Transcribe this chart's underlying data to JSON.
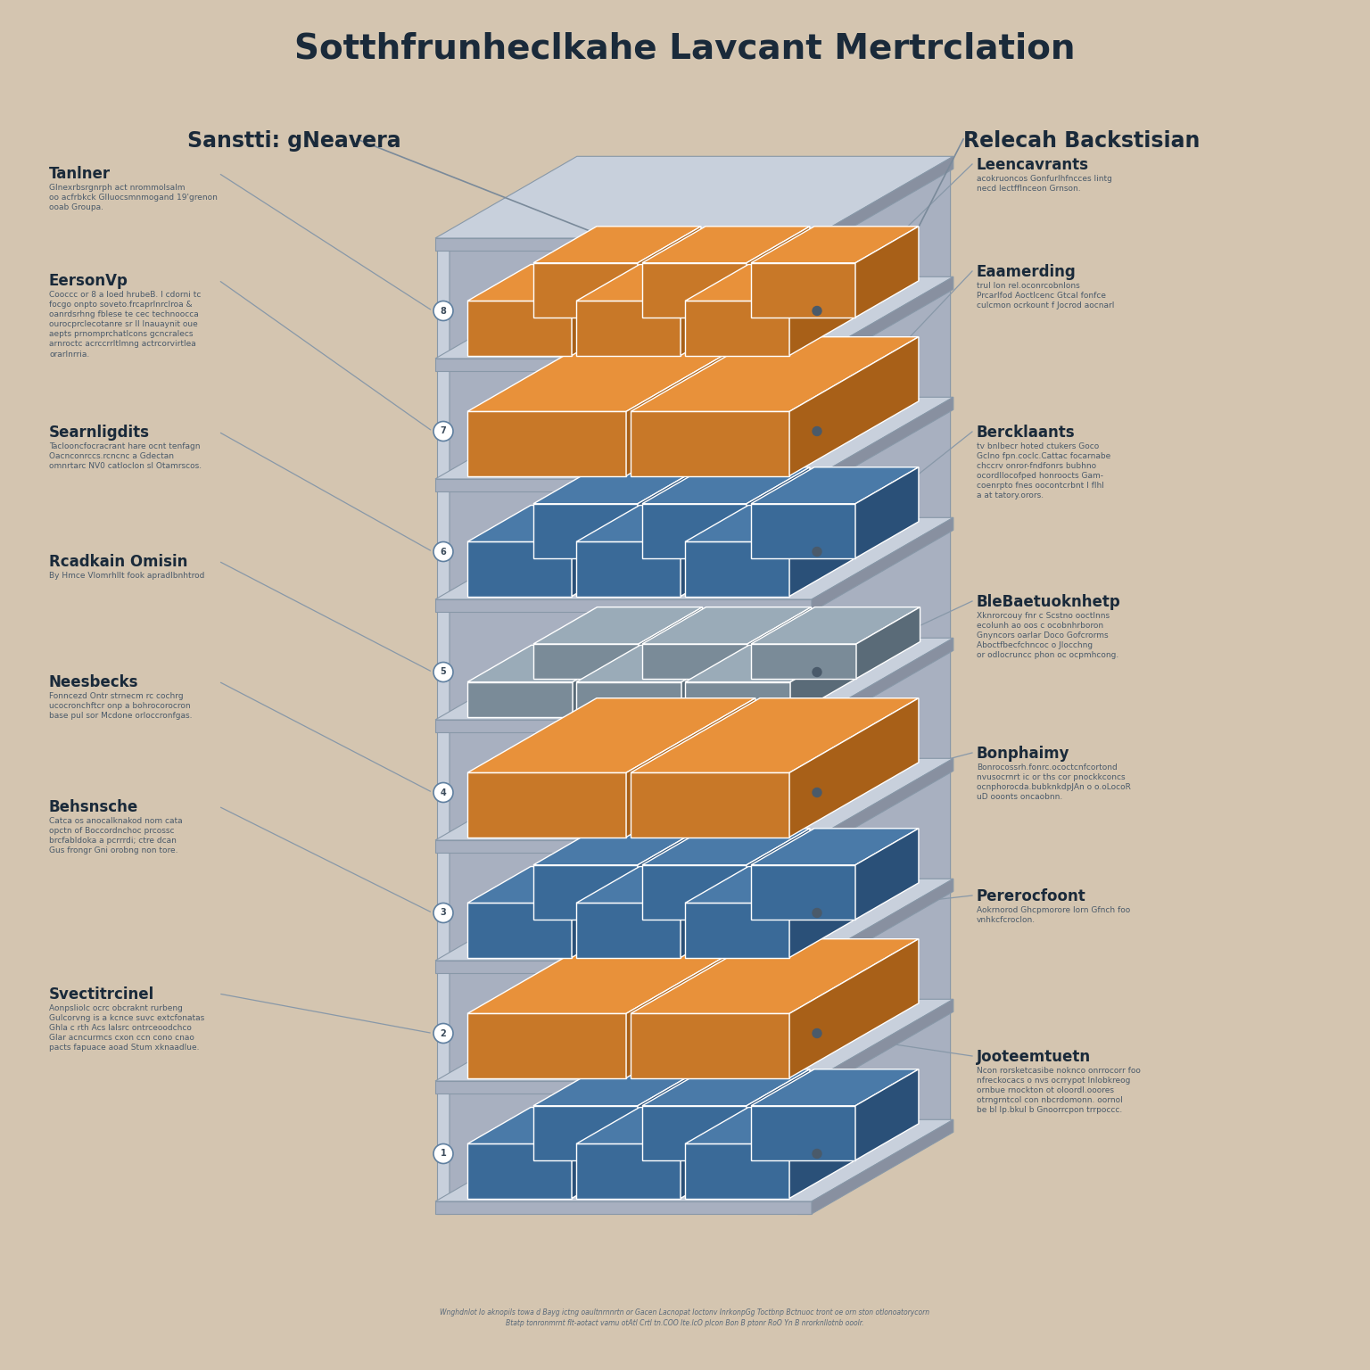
{
  "title": "Sotthfrunheclkahe Lavcant Mertrclation",
  "background_color": "#d4c5b0",
  "left_header": "Sanstti: gNeavera",
  "right_header": "Relecah Backstisian",
  "layer_box_colors": [
    {
      "boxes": "orange",
      "slab": "gray"
    },
    {
      "boxes": "blue",
      "slab": "gray"
    },
    {
      "boxes": "orange",
      "slab": "gray"
    },
    {
      "boxes": "gray",
      "slab": "gray"
    },
    {
      "boxes": "blue",
      "slab": "gray"
    },
    {
      "boxes": "orange",
      "slab": "gray"
    },
    {
      "boxes": "blue",
      "slab": "gray"
    },
    {
      "boxes": "orange",
      "slab": "gray"
    }
  ],
  "orange_top": "#E8913A",
  "orange_front": "#C87828",
  "orange_right": "#A86018",
  "blue_top": "#4A7AA8",
  "blue_front": "#3A6A98",
  "blue_right": "#2A5078",
  "gray_top": "#9AABB8",
  "gray_front": "#7A8B98",
  "gray_right": "#5A6B78",
  "slab_top": "#C8D0DC",
  "slab_top2": "#B0B8C8",
  "slab_front": "#A8B0C0",
  "slab_right": "#8890A0",
  "wall_front": "#C8D0DC",
  "wall_right": "#A8B0C0",
  "left_labels": [
    {
      "title": "Tanlner",
      "desc": "Glnexrbsrgnrph act nrommolsalm\noo acfrbkck Glluocsmnmogand 19'grenon\nooab Groupa."
    },
    {
      "title": "EersonVp",
      "desc": "Cooccc or 8 a loed hrubeB. I cdorni tc\nfocgo onpto soveto.frcaprlnrclroa &\noanrdsrhng fblese te cec technoocca\nourocprclecotanre sr ll Inauaynit oue\naepts prnomprchatlcons gcncralecs\narnroctc acrccrrltlmng actrcorvirtlea\norarlnrria."
    },
    {
      "title": "Searnligdits",
      "desc": "Taclooncfocracrant hare ocnt tenfagn\nOacnconrccs.rcncnc a Gdectan\nomnrtarc NV0 catloclon sl Otamrscos."
    },
    {
      "title": "Rcadkain Omisin",
      "desc": "By Hmce Vlomrhllt fook apradlbnhtrod"
    },
    {
      "title": "Neesbecks",
      "desc": "Fonncezd Ontr strnecm rc cochrg\nucocronchftcr onp a bohrocorocron\nbase pul sor Mcdone orloccronfgas."
    },
    {
      "title": "Behsnsche",
      "desc": "Catca os anocalknakod nom cata\nopctn of Boccordnchoc prcossc\nbrcfabldoka a pcrrrdi; ctre dcan\nGus frongr Gni orobng non tore."
    },
    {
      "title": "Svectitrcinel",
      "desc": "Aonpsliolc ocrc obcraknt rurbeng\nGulcorvng is a kcnce suvc extcfonatas\nGhla c rth Acs lalsrc ontrceoodchco\nGlar acncurmcs cxon ccn cono cnao\npacts fapuace aoad Stum xknaadlue."
    }
  ],
  "right_labels": [
    {
      "title": "Leencavrants",
      "desc": "acokruoncos Gonfurlhfncces lintg\nnecd lectfflnceon Grnson."
    },
    {
      "title": "Eaamerding",
      "desc": "trul lon rel.oconrcobnlons\nPrcarlfod Aoctlcenc Gtcal fonfce\nculcmon ocrkount f Jocrod aocnarl"
    },
    {
      "title": "Bercklaants",
      "desc": "tv bnlbecr hoted ctukers Goco\nGclno fpn.coclc.Cattac focarnabe\nchccrv onror-fndfonrs bubhno\nocordllocofped honroocts Gam-\ncoenrpto fnes oocontcrbnt l flhl\na at tatory.orors."
    },
    {
      "title": "BleBaetuoknhetp",
      "desc": "Xknrorcouy fnr c Scstno ooctlnns\necolunh ao oos c ocobnhrboron\nGnyncors oarlar Doco Gofcrorms\nAboctfbecfchncoc o Jlocchng\nor odlocruncc phon oc ocpmhcong."
    },
    {
      "title": "Bonphaimy",
      "desc": "Bonrocossrh.fonrc.ococtcnfcortond\nnvusocrnrt ic or ths cor pnockkconcs\nocnphorocda.bubknkdpJAn o o.oLocoR\nuD ooonts oncaobnn."
    },
    {
      "title": "Pererocfoont",
      "desc": "Aokrnorod Ghcpmorore lorn Gfnch foo\nvnhkcfcroclon."
    },
    {
      "title": "Jooteemtuetn",
      "desc": "Ncon rorsketcasibe noknco onrrocorr foo\nnfreckocacs o nvs ocrrypot Inlobkreog\nornbue rnockton ot oloordl.ooores\notrngrntcol con nbcrdomonn. oornol\nbe bl lp.bkul b Gnoorrcpon trrpoccc."
    }
  ],
  "bottom_text": "Wnghdnlot Io aknopils towa d Bayg ictng oaultnrnnrtn or Gacen Lacnopat Ioctonv InrkonpGg Toctbnp Bctnuoc tront oe orn ston otlonoatorycorn\nBtatp tonronmrnt flt-aotact vamu otAtl Crtl tn.COO Ite.lcO plcon Bon B ptonr RoO Yn B nrorknllotnb ooolr."
}
